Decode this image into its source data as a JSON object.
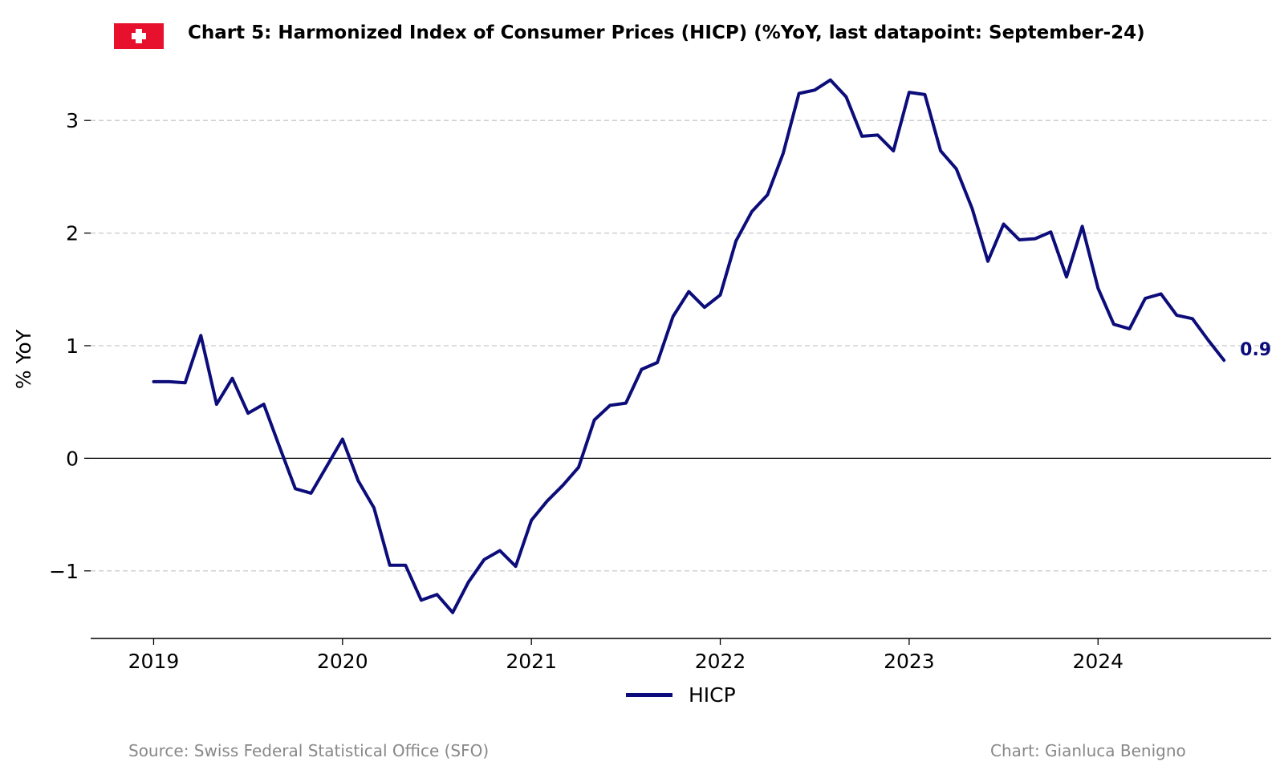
{
  "title": "Chart 5: Harmonized Index of Consumer Prices (HICP) (%YoY, last datapoint: September-24)",
  "source": "Source: Swiss Federal Statistical Office (SFO)",
  "credit": "Chart: Gianluca Benigno",
  "colors": {
    "series": "#0c0c7a",
    "grid": "#c8c8c8",
    "flag_red": "#e8112d",
    "footer_text": "#888888"
  },
  "chart_data": {
    "type": "line",
    "title": "Chart 5: Harmonized Index of Consumer Prices (HICP) (%YoY, last datapoint: September-24)",
    "xlabel": "",
    "ylabel": "% YoY",
    "x_start": "2019-01",
    "x_end": "2024-09",
    "xlim": [
      "2018-09",
      "2024-12"
    ],
    "ylim": [
      -1.6,
      3.5
    ],
    "x_ticks": [
      "2019",
      "2020",
      "2021",
      "2022",
      "2023",
      "2024"
    ],
    "y_ticks": [
      -1,
      0,
      1,
      2,
      3
    ],
    "y_tick_labels": [
      "−1",
      "0",
      "1",
      "2",
      "3"
    ],
    "grid": "y-dashed",
    "zero_line": true,
    "legend_position": "bottom-center",
    "last_value_label": "0.9",
    "series": [
      {
        "name": "HICP",
        "values": [
          0.68,
          0.68,
          0.67,
          1.09,
          0.48,
          0.71,
          0.4,
          0.48,
          0.1,
          -0.27,
          -0.31,
          -0.07,
          0.17,
          -0.2,
          -0.44,
          -0.95,
          -0.95,
          -1.26,
          -1.21,
          -1.37,
          -1.1,
          -0.9,
          -0.82,
          -0.96,
          -0.55,
          -0.38,
          -0.24,
          -0.08,
          0.34,
          0.47,
          0.49,
          0.79,
          0.85,
          1.26,
          1.48,
          1.34,
          1.45,
          1.93,
          2.19,
          2.34,
          2.71,
          3.24,
          3.27,
          3.36,
          3.21,
          2.86,
          2.87,
          2.73,
          3.25,
          3.23,
          2.73,
          2.57,
          2.22,
          1.75,
          2.08,
          1.94,
          1.95,
          2.01,
          1.61,
          2.06,
          1.51,
          1.19,
          1.15,
          1.42,
          1.46,
          1.27,
          1.24,
          1.05,
          0.87
        ]
      }
    ]
  }
}
